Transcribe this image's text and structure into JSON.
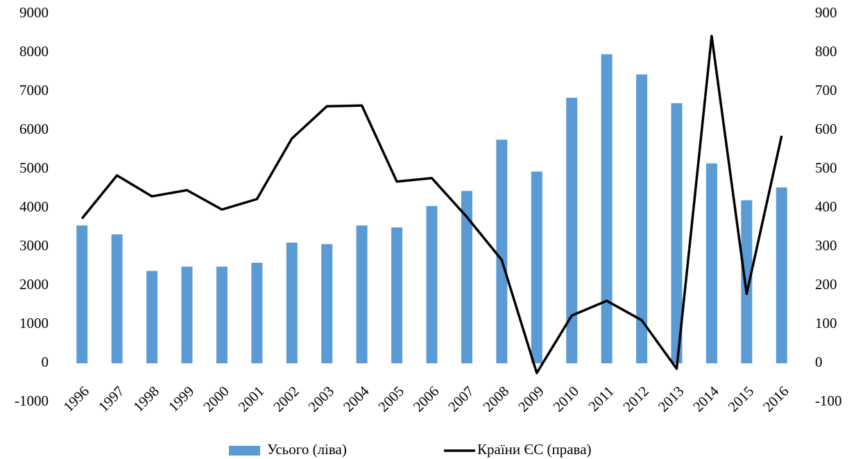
{
  "chart_data": {
    "type": "bar-line",
    "categories": [
      "1996",
      "1997",
      "1998",
      "1999",
      "2000",
      "2001",
      "2002",
      "2003",
      "2004",
      "2005",
      "2006",
      "2007",
      "2008",
      "2009",
      "2010",
      "2011",
      "2012",
      "2013",
      "2014",
      "2015",
      "2016"
    ],
    "series": [
      {
        "name": "Усього (ліва)",
        "type": "bar",
        "color": "#5b9bd5",
        "axis": "y",
        "values": [
          3550,
          3320,
          2380,
          2490,
          2490,
          2590,
          3110,
          3070,
          3550,
          3500,
          4050,
          4440,
          5760,
          4940,
          6840,
          7960,
          7440,
          6700,
          5150,
          4200,
          4530
        ]
      },
      {
        "name": "Країни ЄС (права)",
        "type": "line",
        "color": "#000000",
        "axis": "y2",
        "values": [
          373,
          484,
          430,
          446,
          396,
          423,
          579,
          662,
          664,
          468,
          477,
          377,
          266,
          -25,
          123,
          161,
          111,
          -14,
          843,
          179,
          586
        ]
      }
    ],
    "ylim": [
      -1000,
      9000
    ],
    "yticks": [
      -1000,
      0,
      1000,
      2000,
      3000,
      4000,
      5000,
      6000,
      7000,
      8000,
      9000
    ],
    "y2lim": [
      -100,
      900
    ],
    "y2ticks": [
      -100,
      0,
      100,
      200,
      300,
      400,
      500,
      600,
      700,
      800,
      900
    ],
    "grid": false,
    "legend": "bottom"
  }
}
